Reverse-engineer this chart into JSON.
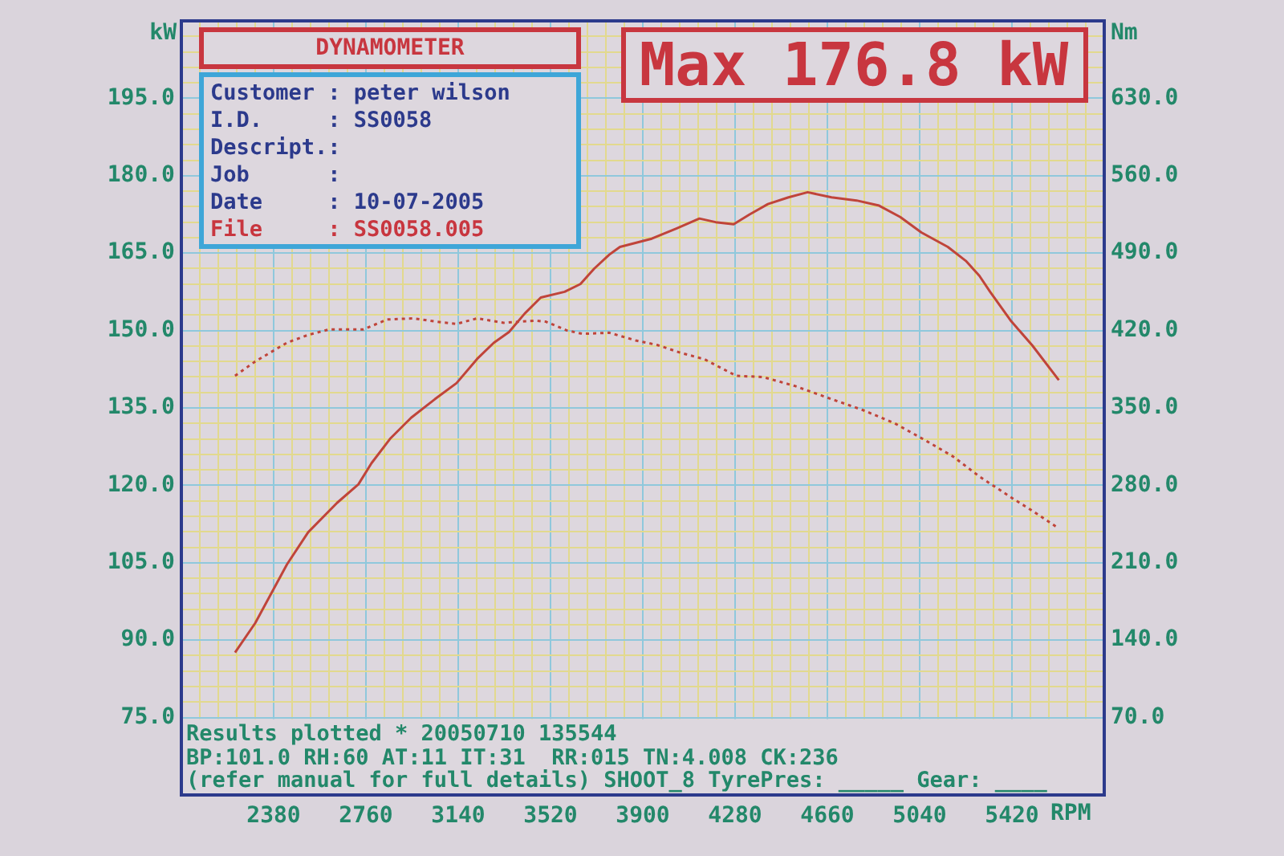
{
  "chart_data": {
    "type": "line",
    "title": "DYNAMOMETER",
    "xlabel": "RPM",
    "ylabel": "kW",
    "y2label": "Nm",
    "annotations": [
      "Max 176.8 kW",
      "Customer : peter wilson",
      "I.D.     : SS0058",
      "Descript.:",
      "Job      :",
      "Date     : 10-07-2005",
      "File     : SS0058.005",
      "Results plotted * 20050710 135544",
      "BP:101.0 RH:60 AT:11 IT:31  RR:015 TN:4.008 CK:236",
      "(refer manual for full details) SHOOT_8 TyrePres: _____ Gear: ____"
    ],
    "series": [
      {
        "color": "#c0443a",
        "line_style": "solid",
        "x": [
          2221,
          2304,
          2435,
          2522,
          2641,
          2729,
          2783,
          2859,
          2946,
          3044,
          3133,
          3218,
          3286,
          3349,
          3414,
          3480,
          3578,
          3643,
          3700,
          3762,
          3806,
          3937,
          4040,
          4133,
          4200,
          4274,
          4340,
          4415,
          4500,
          4579,
          4677,
          4780,
          4873,
          4960,
          5047,
          5156,
          5230,
          5286,
          5330,
          5417,
          5504,
          5613
        ],
        "values": [
          87.6,
          93.3,
          104.7,
          110.9,
          116.6,
          120.2,
          124.3,
          129.0,
          133.1,
          136.7,
          139.8,
          144.5,
          147.6,
          149.7,
          153.3,
          156.4,
          157.5,
          159.0,
          162.0,
          164.7,
          166.2,
          167.8,
          169.8,
          171.7,
          171.0,
          170.6,
          172.5,
          174.5,
          175.8,
          176.8,
          175.8,
          175.2,
          174.2,
          172.0,
          169.0,
          166.2,
          163.5,
          160.6,
          157.5,
          151.8,
          147.1,
          140.4
        ]
      },
      {
        "color": "#c0443a",
        "line_style": "dotted",
        "axis": "y2",
        "x": [
          2221,
          2304,
          2435,
          2522,
          2609,
          2750,
          2848,
          2957,
          3050,
          3133,
          3218,
          3327,
          3458,
          3501,
          3588,
          3653,
          3762,
          3871,
          3958,
          4054,
          4154,
          4285,
          4394,
          4524,
          4677,
          4807,
          4938,
          5069,
          5178,
          5286,
          5417,
          5504,
          5613
        ],
        "values": [
          379,
          392,
          409,
          416,
          421,
          421,
          430,
          431,
          428,
          426,
          431,
          427,
          429,
          428,
          420,
          417,
          418,
          411,
          407,
          400,
          394,
          379,
          378,
          370,
          358,
          348,
          336,
          320,
          306,
          288,
          269,
          257,
          241
        ]
      }
    ],
    "xlim": [
      2000,
      5800
    ],
    "xticks": [
      {
        "value": 2076,
        "label": null
      },
      {
        "value": 2152,
        "label": null
      },
      {
        "value": 2228,
        "label": null
      },
      {
        "value": 2304,
        "label": null
      },
      2380,
      {
        "value": 2456,
        "label": null
      },
      {
        "value": 2532,
        "label": null
      },
      {
        "value": 2608,
        "label": null
      },
      {
        "value": 2684,
        "label": null
      },
      2760,
      {
        "value": 2836,
        "label": null
      },
      {
        "value": 2912,
        "label": null
      },
      {
        "value": 2988,
        "label": null
      },
      {
        "value": 3064,
        "label": null
      },
      3140,
      {
        "value": 3216,
        "label": null
      },
      {
        "value": 3292,
        "label": null
      },
      {
        "value": 3368,
        "label": null
      },
      {
        "value": 3444,
        "label": null
      },
      3520,
      {
        "value": 3596,
        "label": null
      },
      {
        "value": 3672,
        "label": null
      },
      {
        "value": 3748,
        "label": null
      },
      {
        "value": 3824,
        "label": null
      },
      3900,
      {
        "value": 3976,
        "label": null
      },
      {
        "value": 4052,
        "label": null
      },
      {
        "value": 4128,
        "label": null
      },
      {
        "value": 4204,
        "label": null
      },
      4280,
      {
        "value": 4356,
        "label": null
      },
      {
        "value": 4432,
        "label": null
      },
      {
        "value": 4508,
        "label": null
      },
      {
        "value": 4584,
        "label": null
      },
      4660,
      {
        "value": 4736,
        "label": null
      },
      {
        "value": 4812,
        "label": null
      },
      {
        "value": 4888,
        "label": null
      },
      {
        "value": 4964,
        "label": null
      },
      5040,
      {
        "value": 5116,
        "label": null
      },
      {
        "value": 5192,
        "label": null
      },
      {
        "value": 5268,
        "label": null
      },
      {
        "value": 5344,
        "label": null
      },
      5420,
      {
        "value": 5496,
        "label": null
      },
      {
        "value": 5572,
        "label": null
      },
      {
        "value": 5648,
        "label": null
      },
      {
        "value": 5724,
        "label": null
      }
    ],
    "ylim": [
      60,
      210
    ],
    "yticks": [
      {
        "value": 75,
        "label": "75.0"
      },
      {
        "value": 78,
        "label": null
      },
      {
        "value": 81,
        "label": null
      },
      {
        "value": 84,
        "label": null
      },
      {
        "value": 87,
        "label": null
      },
      {
        "value": 90,
        "label": "90.0"
      },
      {
        "value": 93,
        "label": null
      },
      {
        "value": 96,
        "label": null
      },
      {
        "value": 99,
        "label": null
      },
      {
        "value": 102,
        "label": null
      },
      {
        "value": 105,
        "label": "105.0"
      },
      {
        "value": 108,
        "label": null
      },
      {
        "value": 111,
        "label": null
      },
      {
        "value": 114,
        "label": null
      },
      {
        "value": 117,
        "label": null
      },
      {
        "value": 120,
        "label": "120.0"
      },
      {
        "value": 123,
        "label": null
      },
      {
        "value": 126,
        "label": null
      },
      {
        "value": 129,
        "label": null
      },
      {
        "value": 132,
        "label": null
      },
      {
        "value": 135,
        "label": "135.0"
      },
      {
        "value": 138,
        "label": null
      },
      {
        "value": 141,
        "label": null
      },
      {
        "value": 144,
        "label": null
      },
      {
        "value": 147,
        "label": null
      },
      {
        "value": 150,
        "label": "150.0"
      },
      {
        "value": 153,
        "label": null
      },
      {
        "value": 156,
        "label": null
      },
      {
        "value": 159,
        "label": null
      },
      {
        "value": 162,
        "label": null
      },
      {
        "value": 165,
        "label": "165.0"
      },
      {
        "value": 168,
        "label": null
      },
      {
        "value": 171,
        "label": null
      },
      {
        "value": 174,
        "label": null
      },
      {
        "value": 177,
        "label": null
      },
      {
        "value": 180,
        "label": "180.0"
      },
      {
        "value": 183,
        "label": null
      },
      {
        "value": 186,
        "label": null
      },
      {
        "value": 189,
        "label": null
      },
      {
        "value": 192,
        "label": null
      },
      {
        "value": 195,
        "label": "195.0"
      },
      {
        "value": 198,
        "label": null
      },
      {
        "value": 201,
        "label": null
      },
      {
        "value": 204,
        "label": null
      },
      {
        "value": 207,
        "label": null
      }
    ],
    "y2lim": [
      0,
      700
    ],
    "y2ticks": [
      {
        "value": 70,
        "label": "70.0"
      },
      {
        "value": 140,
        "label": "140.0"
      },
      {
        "value": 210,
        "label": "210.0"
      },
      {
        "value": 280,
        "label": "280.0"
      },
      {
        "value": 350,
        "label": "350.0"
      },
      {
        "value": 420,
        "label": "420.0"
      },
      {
        "value": 490,
        "label": "490.0"
      },
      {
        "value": 560,
        "label": "560.0"
      },
      {
        "value": 630,
        "label": "630.0"
      }
    ],
    "grid": true,
    "legend": false,
    "marker": "none"
  }
}
